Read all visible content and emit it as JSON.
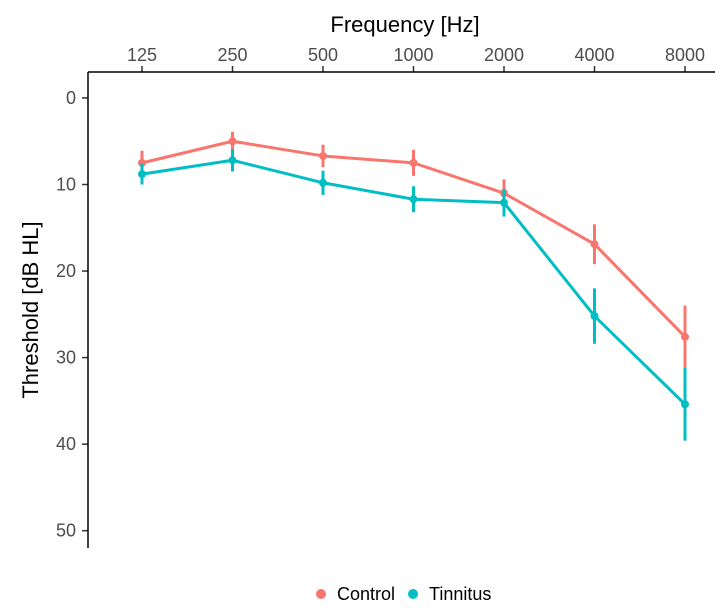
{
  "chart_data": {
    "type": "line",
    "xlabel": "Frequency [Hz]",
    "ylabel": "Threshold [dB HL]",
    "categories": [
      "125",
      "250",
      "500",
      "1000",
      "2000",
      "4000",
      "8000"
    ],
    "ylim": [
      52,
      -3
    ],
    "y_reversed": true,
    "y_ticks": [
      0,
      10,
      20,
      30,
      40,
      50
    ],
    "x_axis_position": "top",
    "grid": false,
    "legend_position": "bottom",
    "series": [
      {
        "name": "Control",
        "color": "#F8766D",
        "values": [
          7.5,
          5.0,
          6.7,
          7.5,
          11.0,
          16.9,
          27.6
        ],
        "error": [
          1.4,
          1.1,
          1.3,
          1.5,
          1.6,
          2.3,
          3.6
        ]
      },
      {
        "name": "Tinnitus",
        "color": "#00BFC4",
        "values": [
          8.8,
          7.2,
          9.8,
          11.7,
          12.1,
          25.2,
          35.4
        ],
        "error": [
          1.2,
          1.3,
          1.4,
          1.5,
          1.6,
          3.2,
          4.2
        ]
      }
    ]
  }
}
